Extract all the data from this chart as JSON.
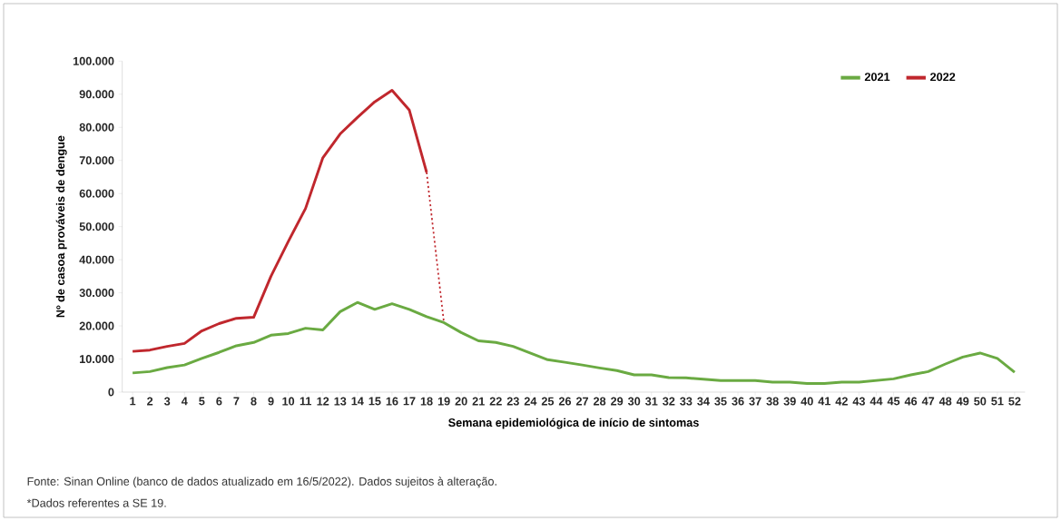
{
  "chart_data": {
    "type": "line",
    "xlabel": "Semana epidemiológica de início de sintomas",
    "ylabel": "Nº de casoa prováveis de dengue",
    "x": [
      1,
      2,
      3,
      4,
      5,
      6,
      7,
      8,
      9,
      10,
      11,
      12,
      13,
      14,
      15,
      16,
      17,
      18,
      19,
      20,
      21,
      22,
      23,
      24,
      25,
      26,
      27,
      28,
      29,
      30,
      31,
      32,
      33,
      34,
      35,
      36,
      37,
      38,
      39,
      40,
      41,
      42,
      43,
      44,
      45,
      46,
      47,
      48,
      49,
      50,
      51,
      52
    ],
    "xlim": [
      0.4,
      52.6
    ],
    "xticks": [
      1,
      2,
      3,
      4,
      5,
      6,
      7,
      8,
      9,
      10,
      11,
      12,
      13,
      14,
      15,
      16,
      17,
      18,
      19,
      20,
      21,
      22,
      23,
      24,
      25,
      26,
      27,
      28,
      29,
      30,
      31,
      32,
      33,
      34,
      35,
      36,
      37,
      38,
      39,
      40,
      41,
      42,
      43,
      44,
      45,
      46,
      47,
      48,
      49,
      50,
      51,
      52
    ],
    "ylim": [
      0,
      100000
    ],
    "yticks": [
      {
        "value": 0,
        "label": "0"
      },
      {
        "value": 10000,
        "label": "10.000"
      },
      {
        "value": 20000,
        "label": "20.000"
      },
      {
        "value": 30000,
        "label": "30.000"
      },
      {
        "value": 40000,
        "label": "40.000"
      },
      {
        "value": 50000,
        "label": "50.000"
      },
      {
        "value": 60000,
        "label": "60.000"
      },
      {
        "value": 70000,
        "label": "70.000"
      },
      {
        "value": 80000,
        "label": "80.000"
      },
      {
        "value": 90000,
        "label": "90.000"
      },
      {
        "value": 100000,
        "label": "100.000"
      }
    ],
    "series": [
      {
        "name": "2021",
        "color": "#6aaa42",
        "values": [
          5800,
          6200,
          7400,
          8200,
          10200,
          12000,
          14000,
          15000,
          17200,
          17700,
          19300,
          18800,
          24300,
          27100,
          25000,
          26700,
          25000,
          22800,
          21000,
          18000,
          15500,
          15000,
          13800,
          11800,
          9800,
          9000,
          8200,
          7300,
          6500,
          5200,
          5200,
          4400,
          4300,
          3900,
          3500,
          3500,
          3500,
          3000,
          3000,
          2600,
          2600,
          3000,
          3000,
          3500,
          4000,
          5200,
          6200,
          8500,
          10600,
          11800,
          10200,
          6000
        ]
      },
      {
        "name": "2022",
        "color": "#c0272d",
        "x": [
          1,
          2,
          3,
          4,
          5,
          6,
          7,
          8,
          9,
          10,
          11,
          12,
          13,
          14,
          15,
          16,
          17,
          18
        ],
        "values": [
          12300,
          12700,
          13800,
          14700,
          18500,
          20700,
          22300,
          22600,
          35000,
          45500,
          55500,
          70800,
          78000,
          83000,
          87700,
          91200,
          85200,
          66400
        ]
      },
      {
        "color": "#c0272d",
        "line_style": "dotted",
        "x": [
          18,
          19
        ],
        "values": [
          66400,
          21000
        ]
      }
    ],
    "legend": "top right",
    "marker": "none",
    "line_style": "solid",
    "annotations": [
      "Fonte: Sinan Online (banco de dados atualizado em 16/5/2022). Dados sujeitos à alteração.",
      "*Dados referentes a SE 19."
    ]
  }
}
